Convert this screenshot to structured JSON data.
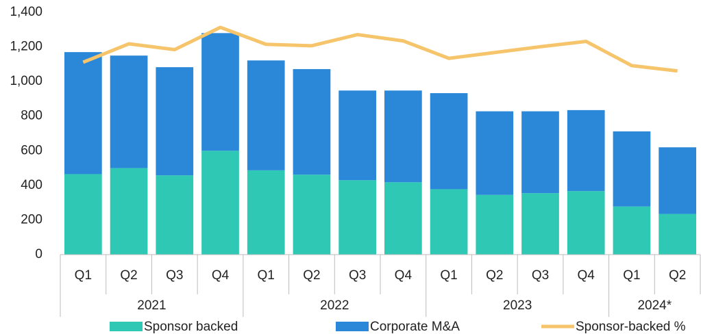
{
  "chart_data": {
    "type": "bar",
    "stacked": true,
    "categories": [
      "Q1",
      "Q2",
      "Q3",
      "Q4",
      "Q1",
      "Q2",
      "Q3",
      "Q4",
      "Q1",
      "Q2",
      "Q3",
      "Q4",
      "Q1",
      "Q2"
    ],
    "groups": [
      {
        "label": "2021",
        "span": 4
      },
      {
        "label": "2022",
        "span": 4
      },
      {
        "label": "2023",
        "span": 4
      },
      {
        "label": "2024*",
        "span": 2
      }
    ],
    "series": [
      {
        "name": "Sponsor backed",
        "color": "#2ec8b4",
        "values": [
          465,
          500,
          458,
          600,
          487,
          462,
          430,
          418,
          378,
          345,
          355,
          367,
          278,
          235
        ]
      },
      {
        "name": "Corporate M&A",
        "color": "#2b88d8",
        "values": [
          705,
          650,
          625,
          680,
          635,
          610,
          518,
          530,
          555,
          483,
          473,
          468,
          434,
          385
        ]
      },
      {
        "name": "Sponsor-backed %",
        "color": "#f5c46b",
        "type": "line",
        "axis": "y2",
        "values": [
          39.7,
          43.5,
          42.3,
          46.9,
          43.4,
          43.1,
          45.4,
          44.1,
          40.5,
          41.7,
          42.9,
          44.0,
          39.0,
          37.9
        ]
      }
    ],
    "ylim": [
      0,
      1400
    ],
    "yticks": [
      0,
      200,
      400,
      600,
      800,
      {
        "value": 1000,
        "label": "1,000"
      },
      {
        "value": 1200,
        "label": "1,200"
      },
      {
        "value": 1400,
        "label": "1,400"
      }
    ],
    "y2lim": [
      0,
      50
    ],
    "grid": false,
    "legend": "bottom"
  }
}
